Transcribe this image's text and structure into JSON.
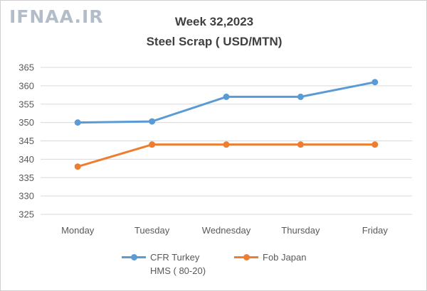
{
  "watermark": "IFNAA.IR",
  "chart_data": {
    "type": "line",
    "title": "Week 32,2023",
    "subtitle": "Steel Scrap ( USD/MTN)",
    "categories": [
      "Monday",
      "Tuesday",
      "Wednesday",
      "Thursday",
      "Friday"
    ],
    "ylim": [
      325,
      365
    ],
    "yticks": [
      325,
      330,
      335,
      340,
      345,
      350,
      355,
      360,
      365
    ],
    "grid": true,
    "legend_position": "bottom",
    "series": [
      {
        "name": "CFR Turkey HMS ( 80-20)",
        "name_lines": [
          "CFR Turkey",
          "HMS ( 80-20)"
        ],
        "color": "#5b9bd5",
        "values": [
          350,
          350.3,
          357,
          357,
          361
        ]
      },
      {
        "name": "Fob Japan",
        "name_lines": [
          "Fob Japan"
        ],
        "color": "#ed7d31",
        "values": [
          338,
          344,
          344,
          344,
          344
        ]
      }
    ]
  }
}
